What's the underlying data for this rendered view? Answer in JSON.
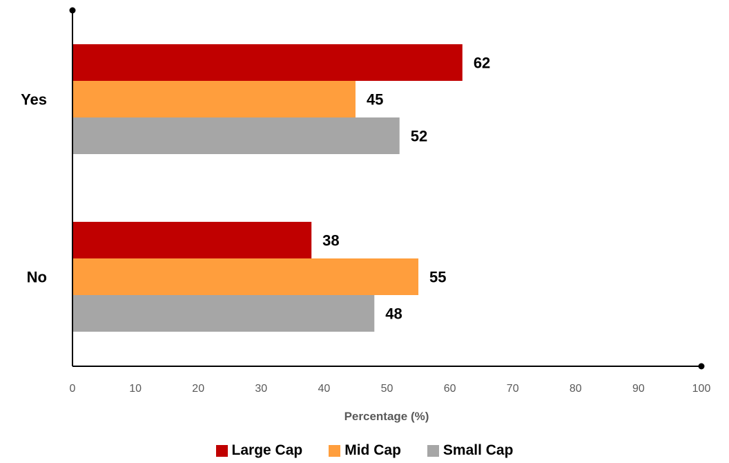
{
  "chart_data": {
    "type": "bar",
    "orientation": "horizontal",
    "categories": [
      "Yes",
      "No"
    ],
    "series": [
      {
        "name": "Large Cap",
        "values": [
          62,
          38
        ],
        "color": "#C00000"
      },
      {
        "name": "Mid Cap",
        "values": [
          45,
          55
        ],
        "color": "#FF9E3D"
      },
      {
        "name": "Small Cap",
        "values": [
          52,
          48
        ],
        "color": "#A6A6A6"
      }
    ],
    "xlabel": "Percentage (%)",
    "xlim": [
      0,
      100
    ],
    "xticks": [
      "0",
      "10",
      "20",
      "30",
      "40",
      "50",
      "60",
      "70",
      "80",
      "90",
      "100"
    ],
    "legend_position": "bottom",
    "grid": false
  }
}
